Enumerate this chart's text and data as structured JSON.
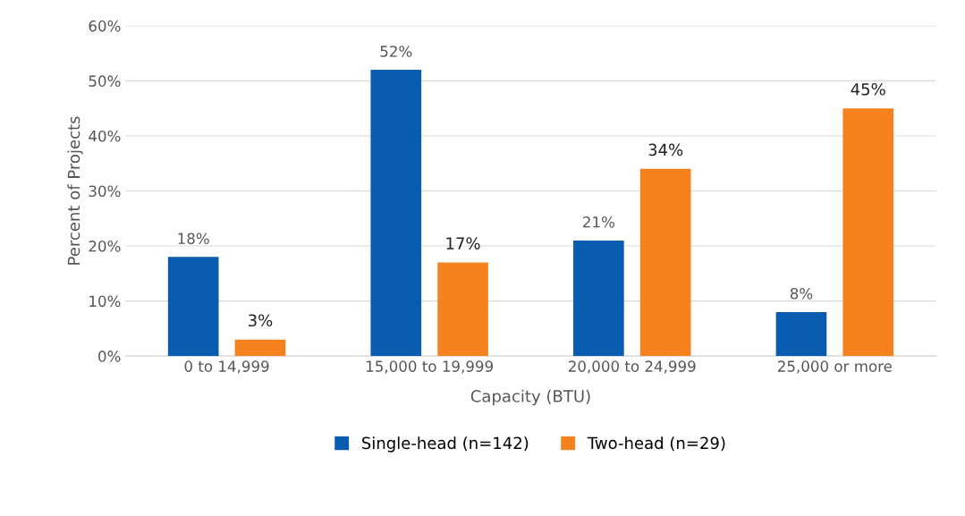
{
  "chart_data": {
    "type": "bar",
    "xlabel": "Capacity (BTU)",
    "ylabel": "Percent of Projects",
    "categories": [
      "0 to 14,999",
      "15,000 to 19,999",
      "20,000 to 24,999",
      "25,000 or more"
    ],
    "series": [
      {
        "name": "Single-head (n=142)",
        "color": "#0a5cb0",
        "values": [
          18,
          52,
          21,
          8
        ],
        "value_labels": [
          "18%",
          "52%",
          "21%",
          "8%"
        ]
      },
      {
        "name": "Two-head (n=29)",
        "color": "#f5821f",
        "values": [
          3,
          17,
          34,
          45
        ],
        "value_labels": [
          "3%",
          "17%",
          "34%",
          "45%"
        ]
      }
    ],
    "ylim": [
      0,
      60
    ],
    "yticks": [
      {
        "value": 0,
        "label": "0%"
      },
      {
        "value": 10,
        "label": "10%"
      },
      {
        "value": 20,
        "label": "20%"
      },
      {
        "value": 30,
        "label": "30%"
      },
      {
        "value": 40,
        "label": "40%"
      },
      {
        "value": 50,
        "label": "50%"
      },
      {
        "value": 60,
        "label": "60%"
      }
    ],
    "grid": "y",
    "legend": "bottom"
  }
}
